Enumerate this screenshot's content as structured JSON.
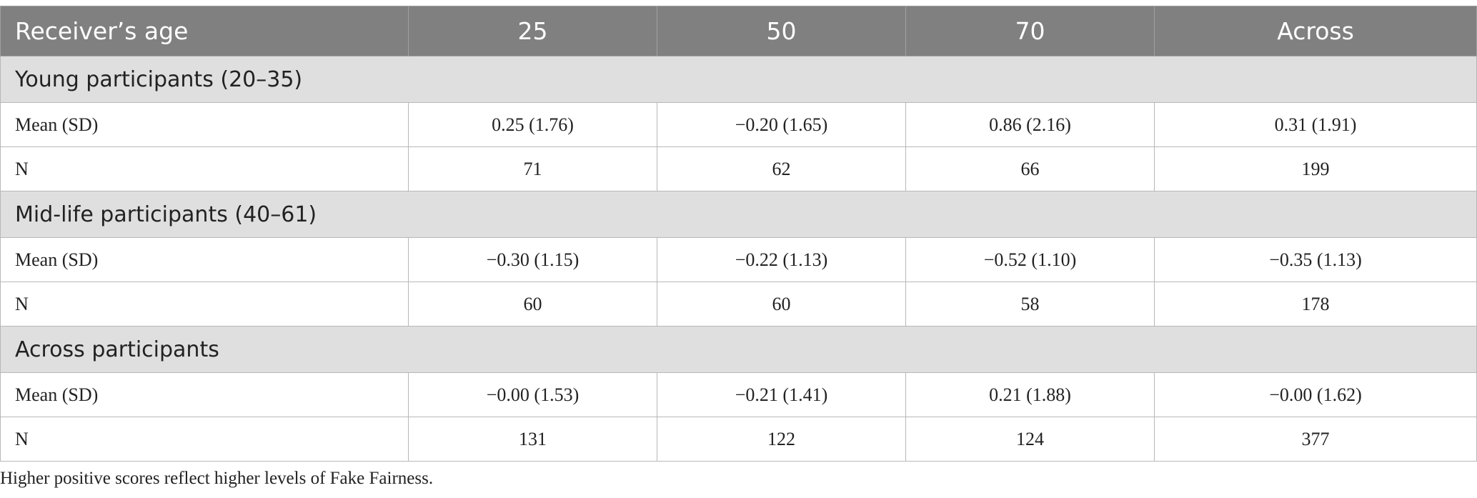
{
  "table": {
    "header": [
      "Receiver’s age",
      "25",
      "50",
      "70",
      "Across"
    ],
    "sections": [
      {
        "title": "Young participants (20–35)",
        "rows": [
          [
            "Mean (SD)",
            "0.25 (1.76)",
            "−0.20 (1.65)",
            "0.86 (2.16)",
            "0.31 (1.91)"
          ],
          [
            "N",
            "71",
            "62",
            "66",
            "199"
          ]
        ]
      },
      {
        "title": "Mid-life participants (40–61)",
        "rows": [
          [
            "Mean (SD)",
            "−0.30 (1.15)",
            "−0.22 (1.13)",
            "−0.52 (1.10)",
            "−0.35 (1.13)"
          ],
          [
            "N",
            "60",
            "60",
            "58",
            "178"
          ]
        ]
      },
      {
        "title": "Across participants",
        "rows": [
          [
            "Mean (SD)",
            "−0.00 (1.53)",
            "−0.21 (1.41)",
            "0.21 (1.88)",
            "−0.00 (1.62)"
          ],
          [
            "N",
            "131",
            "122",
            "124",
            "377"
          ]
        ]
      }
    ]
  },
  "footnote": "Higher positive scores reflect higher levels of Fake Fairness."
}
